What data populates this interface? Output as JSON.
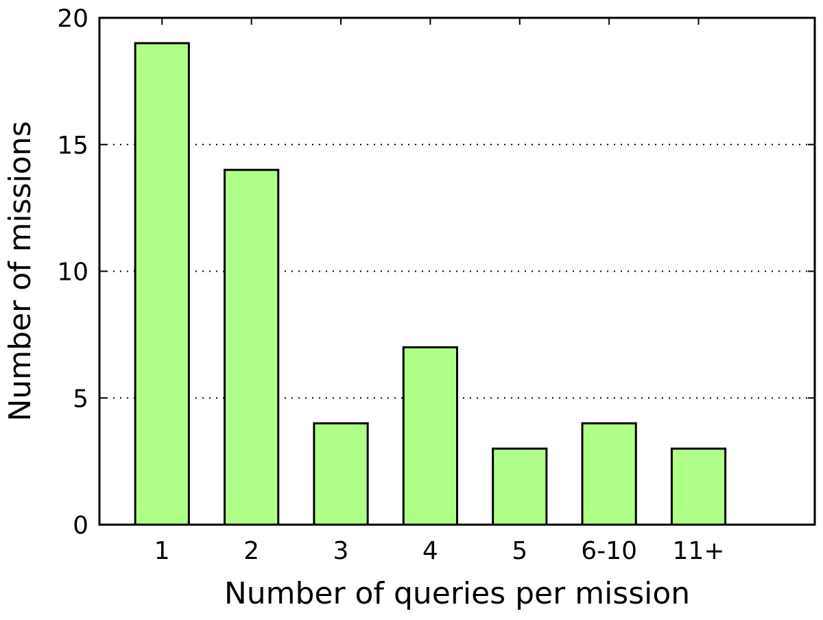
{
  "chart_data": {
    "type": "bar",
    "title": "",
    "xlabel": "Number of queries per mission",
    "ylabel": "Number of missions",
    "categories": [
      "1",
      "2",
      "3",
      "4",
      "5",
      "6-10",
      "11+"
    ],
    "values": [
      19,
      14,
      4,
      7,
      3,
      4,
      3
    ],
    "ylim": [
      0,
      20
    ],
    "yticks": [
      0,
      5,
      10,
      15,
      20
    ],
    "grid": "y dotted",
    "legend": "none",
    "colors": {
      "bar_fill": "#b0ff88",
      "bar_stroke": "#000000",
      "grid": "#000000",
      "axis": "#000000"
    }
  }
}
